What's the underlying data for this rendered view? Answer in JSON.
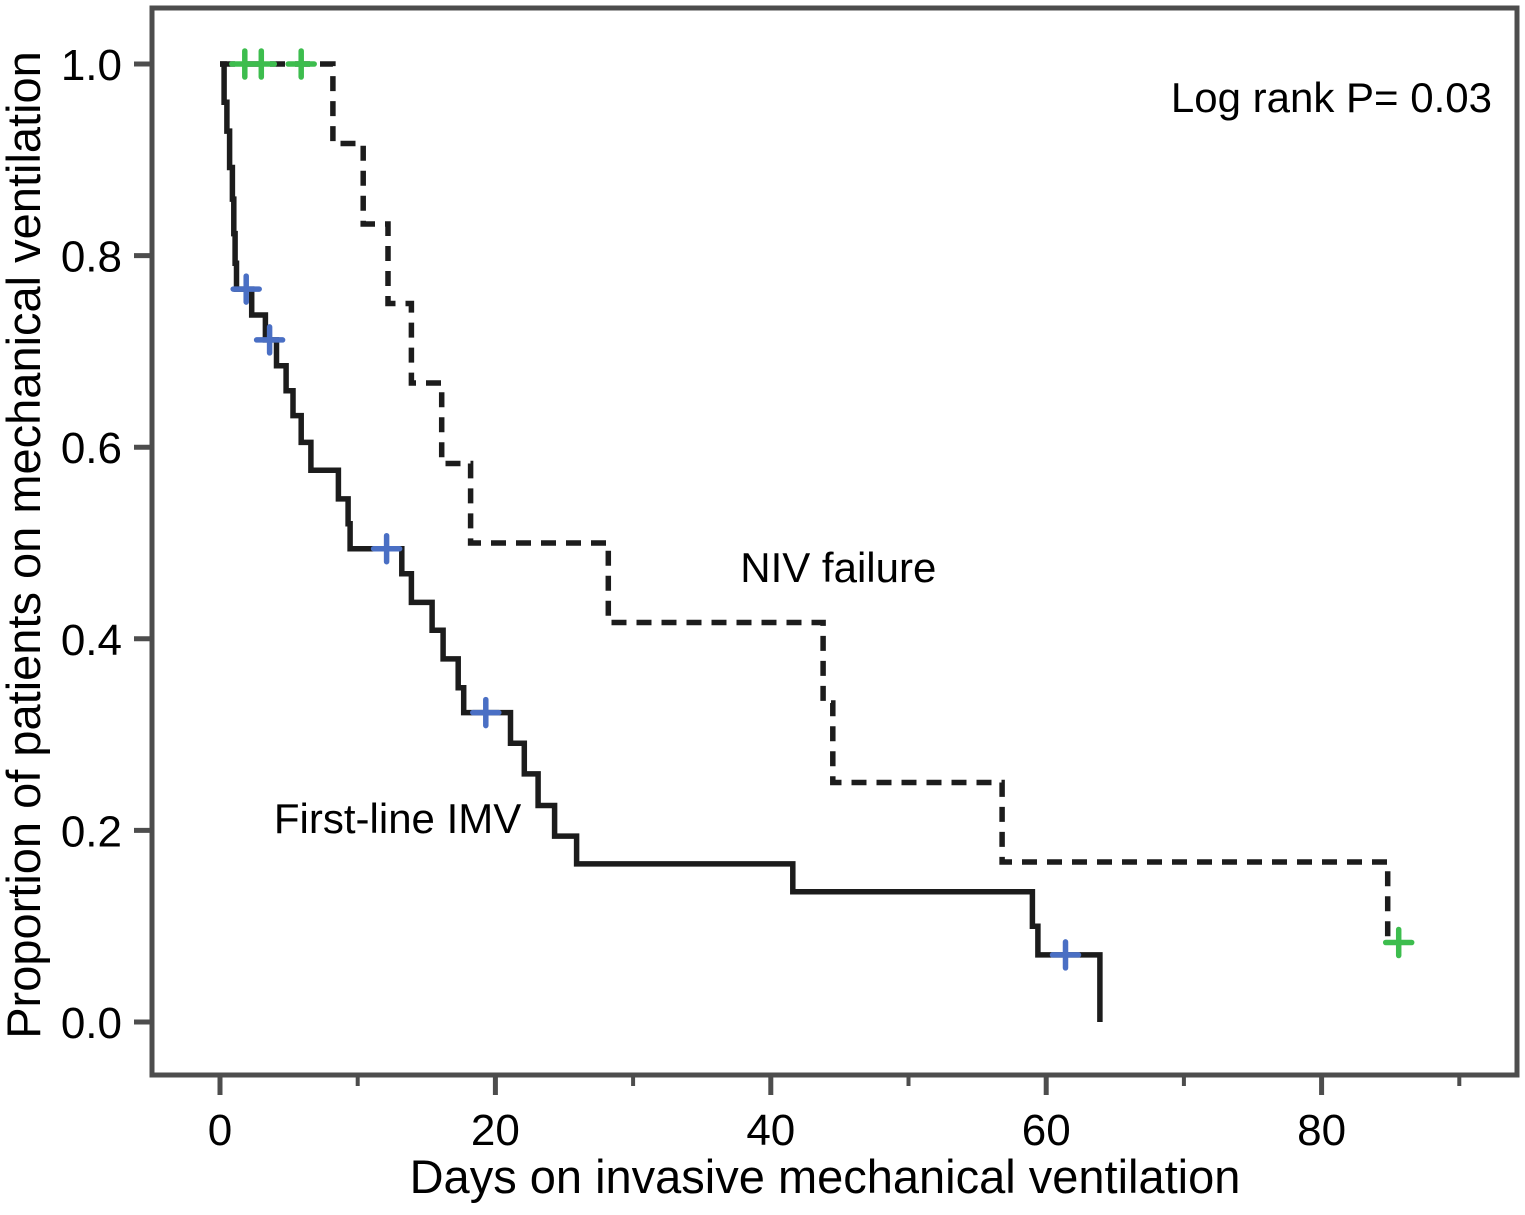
{
  "annotations": {
    "log_rank": "Log rank P= 0.03"
  },
  "colors": {
    "curve": "#1c1c1c",
    "frame": "#4d4d4d",
    "censor_solid_series": "#4a6fc4",
    "censor_dashed_series": "#3dbd4e",
    "background": "#ffffff"
  },
  "chart_data": {
    "type": "line",
    "subtype": "kaplan-meier-step",
    "title": "",
    "xlabel": "Days on invasive mechanical ventilation",
    "ylabel": "Proportion of patients on mechanical ventilation",
    "xlim": [
      -5,
      94
    ],
    "ylim": [
      -0.06,
      1.06
    ],
    "x_major_ticks": [
      0,
      20,
      40,
      60,
      80
    ],
    "x_minor_ticks": [
      10,
      30,
      50,
      70,
      90
    ],
    "x_major_tick_labels": [
      "0",
      "20",
      "40",
      "60",
      "80"
    ],
    "y_ticks": [
      0.0,
      0.2,
      0.4,
      0.6,
      0.8,
      1.0
    ],
    "y_tick_labels": [
      "0.0",
      "0.2",
      "0.4",
      "0.6",
      "0.8",
      "1.0"
    ],
    "grid": false,
    "legend_position": "none (inline curve labels)",
    "annotation": "Log rank P= 0.03",
    "series": [
      {
        "name": "First-line IMV",
        "line_style": "solid",
        "color": "#1c1c1c",
        "label_pos": {
          "x": 12.9,
          "y": 0.213
        },
        "steps": [
          [
            0,
            1.0
          ],
          [
            0.3,
            0.96
          ],
          [
            0.5,
            0.93
          ],
          [
            0.7,
            0.892
          ],
          [
            0.9,
            0.859
          ],
          [
            1.0,
            0.823
          ],
          [
            1.1,
            0.792
          ],
          [
            1.2,
            0.765
          ],
          [
            2.3,
            0.738
          ],
          [
            3.3,
            0.712
          ],
          [
            4.1,
            0.685
          ],
          [
            4.8,
            0.659
          ],
          [
            5.3,
            0.633
          ],
          [
            5.9,
            0.605
          ],
          [
            6.6,
            0.576
          ],
          [
            8.6,
            0.546
          ],
          [
            9.3,
            0.52
          ],
          [
            9.45,
            0.494
          ],
          [
            13.2,
            0.468
          ],
          [
            13.9,
            0.438
          ],
          [
            15.4,
            0.409
          ],
          [
            16.2,
            0.379
          ],
          [
            17.3,
            0.349
          ],
          [
            17.7,
            0.323
          ],
          [
            21.1,
            0.291
          ],
          [
            22.1,
            0.259
          ],
          [
            23.1,
            0.226
          ],
          [
            24.3,
            0.194
          ],
          [
            25.9,
            0.165
          ],
          [
            41.6,
            0.136
          ],
          [
            59.0,
            0.1
          ],
          [
            59.4,
            0.07
          ],
          [
            63.9,
            0.0
          ]
        ],
        "censor_marks": {
          "color": "#4a6fc4",
          "points": [
            [
              1.9,
              0.765
            ],
            [
              3.6,
              0.712
            ],
            [
              12.1,
              0.494
            ],
            [
              19.3,
              0.323
            ],
            [
              61.4,
              0.07
            ]
          ]
        }
      },
      {
        "name": "NIV failure",
        "line_style": "dashed",
        "color": "#1c1c1c",
        "label_pos": {
          "x": 44.9,
          "y": 0.475
        },
        "steps": [
          [
            0,
            1.0
          ],
          [
            8.2,
            0.917
          ],
          [
            10.4,
            0.833
          ],
          [
            12.2,
            0.75
          ],
          [
            13.9,
            0.667
          ],
          [
            16.1,
            0.583
          ],
          [
            18.2,
            0.5
          ],
          [
            28.2,
            0.417
          ],
          [
            43.8,
            0.333
          ],
          [
            44.5,
            0.25
          ],
          [
            56.8,
            0.167
          ],
          [
            84.8,
            0.083
          ]
        ],
        "censor_marks": {
          "color": "#3dbd4e",
          "points": [
            [
              1.8,
              1.0
            ],
            [
              3.0,
              1.0
            ],
            [
              5.9,
              1.0
            ],
            [
              85.6,
              0.083
            ]
          ]
        }
      }
    ]
  }
}
